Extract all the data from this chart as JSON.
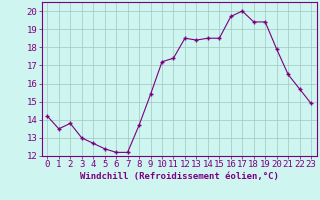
{
  "x": [
    0,
    1,
    2,
    3,
    4,
    5,
    6,
    7,
    8,
    9,
    10,
    11,
    12,
    13,
    14,
    15,
    16,
    17,
    18,
    19,
    20,
    21,
    22,
    23
  ],
  "y": [
    14.2,
    13.5,
    13.8,
    13.0,
    12.7,
    12.4,
    12.2,
    12.2,
    13.7,
    15.4,
    17.2,
    17.4,
    18.5,
    18.4,
    18.5,
    18.5,
    19.7,
    20.0,
    19.4,
    19.4,
    17.9,
    16.5,
    15.7,
    14.9
  ],
  "line_color": "#7B0080",
  "marker_color": "#7B0080",
  "bg_color": "#cef5f0",
  "grid_color": "#a0c8c0",
  "xlabel": "Windchill (Refroidissement éolien,°C)",
  "ylabel": "",
  "ylim": [
    12,
    20.5
  ],
  "xlim": [
    -0.5,
    23.5
  ],
  "yticks": [
    12,
    13,
    14,
    15,
    16,
    17,
    18,
    19,
    20
  ],
  "xticks": [
    0,
    1,
    2,
    3,
    4,
    5,
    6,
    7,
    8,
    9,
    10,
    11,
    12,
    13,
    14,
    15,
    16,
    17,
    18,
    19,
    20,
    21,
    22,
    23
  ],
  "title_color": "#7B0080",
  "font_size": 6.5
}
